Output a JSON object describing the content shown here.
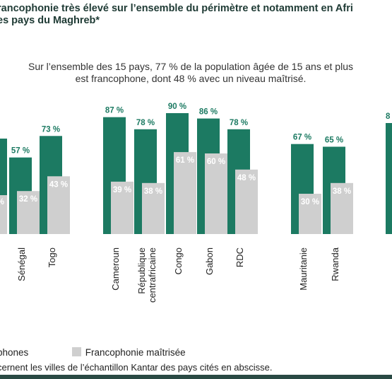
{
  "title": {
    "line1": "rancophonie très élevé sur l’ensemble du périmètre et notamment en Afri",
    "line2": "es pays du Maghreb*"
  },
  "subtitle": {
    "line1": "Sur l’ensemble des 15 pays, 77 % de la population âgée de 15 ans et plus",
    "line2": "est francophone, dont 48 % avec un niveau maîtrisé."
  },
  "legend": {
    "francophones_label": "phones",
    "maitrisee_label": "Francophonie maîtrisée"
  },
  "note": "cernent les villes de l’échantillon Kantar des pays cités en abscisse.",
  "colors": {
    "francophones": "#1c7a62",
    "maitrisee": "#cfcfcf"
  },
  "chart_data": {
    "type": "bar",
    "categories": [
      "Sénégal",
      "Togo",
      "Cameroun",
      "République centrafricaine",
      "Congo",
      "Gabon",
      "RDC",
      "Mauritanie",
      "Rwanda"
    ],
    "series": [
      {
        "name": "",
        "values": [
          57,
          73,
          87,
          78,
          90,
          86,
          78,
          67,
          65
        ]
      },
      {
        "name": "Francophonie maîtrisée",
        "values": [
          32,
          43,
          39,
          38,
          61,
          60,
          48,
          30,
          38
        ]
      }
    ],
    "value_labels": {
      "francophones": [
        "57 %",
        "73 %",
        "87 %",
        "78 %",
        "90 %",
        "86 %",
        "78 %",
        "67 %",
        "65 %"
      ],
      "maitrisee": [
        "32 %",
        "43 %",
        "39 %",
        "38 %",
        "61 %",
        "60 %",
        "48 %",
        "30 %",
        "38 %"
      ]
    },
    "category_lines": [
      [
        "Sénégal"
      ],
      [
        "Togo"
      ],
      [
        "Cameroun"
      ],
      [
        "République",
        "centrafricaine"
      ],
      [
        "Congo"
      ],
      [
        "Gabon"
      ],
      [
        "RDC"
      ],
      [
        "Mauritanie"
      ],
      [
        "Rwanda"
      ]
    ],
    "ylim": [
      0,
      100
    ]
  }
}
